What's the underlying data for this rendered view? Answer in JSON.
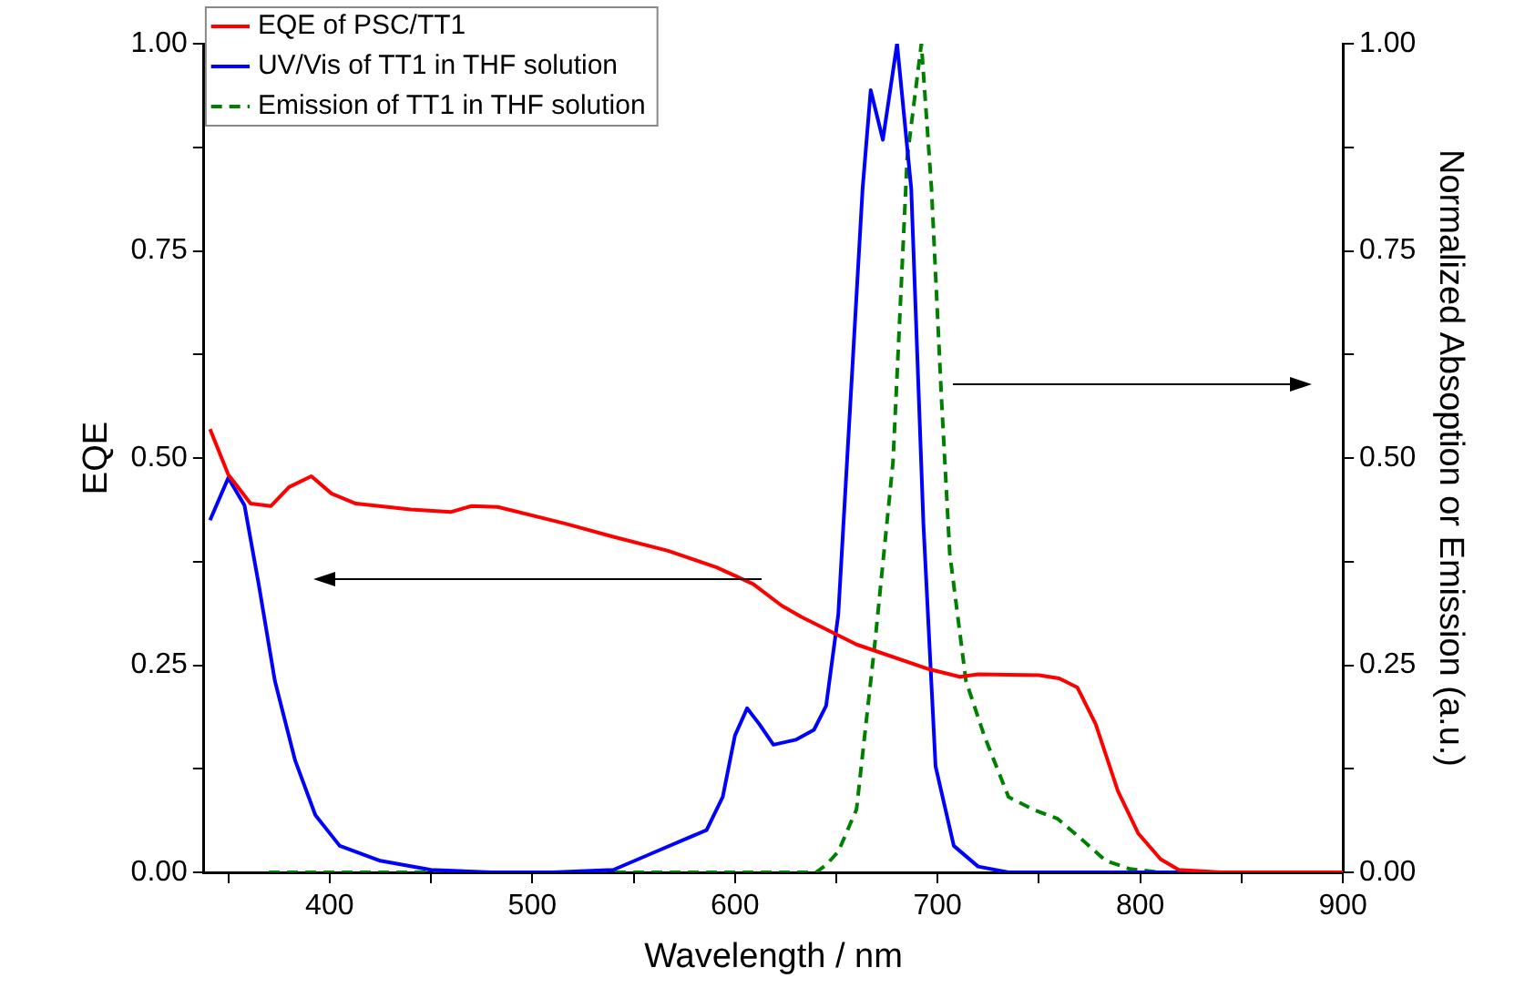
{
  "chart_data": {
    "type": "line",
    "xlabel": "Wavelength / nm",
    "ylabel": "EQE",
    "y2label": "Normalized Absoption or Emission (a.u.)",
    "xlim": [
      338,
      900
    ],
    "xticks": [
      {
        "value": 350,
        "label": null
      },
      400,
      {
        "value": 450,
        "label": null
      },
      500,
      {
        "value": 550,
        "label": null
      },
      600,
      {
        "value": 650,
        "label": null
      },
      700,
      {
        "value": 750,
        "label": null
      },
      800,
      {
        "value": 850,
        "label": null
      },
      900
    ],
    "ylim": [
      0,
      1
    ],
    "yticks": [
      {
        "value": 0,
        "label": "0.00"
      },
      {
        "value": 0.125,
        "label": null
      },
      {
        "value": 0.25,
        "label": "0.25"
      },
      {
        "value": 0.375,
        "label": null
      },
      {
        "value": 0.5,
        "label": "0.50"
      },
      {
        "value": 0.625,
        "label": null
      },
      {
        "value": 0.75,
        "label": "0.75"
      },
      {
        "value": 0.875,
        "label": null
      },
      {
        "value": 1,
        "label": "1.00"
      }
    ],
    "y2lim": [
      0,
      1
    ],
    "y2ticks": [
      {
        "value": 0,
        "label": "0.00"
      },
      {
        "value": 0.125,
        "label": null
      },
      {
        "value": 0.25,
        "label": "0.25"
      },
      {
        "value": 0.375,
        "label": null
      },
      {
        "value": 0.5,
        "label": "0.50"
      },
      {
        "value": 0.625,
        "label": null
      },
      {
        "value": 0.75,
        "label": "0.75"
      },
      {
        "value": 0.875,
        "label": null
      },
      {
        "value": 1,
        "label": "1.00"
      }
    ],
    "grid": false,
    "legend": "top left",
    "marker": "none",
    "series": [
      {
        "name": "EQE of PSC/TT1",
        "color": "#ff0000",
        "line_style": "solid",
        "x": [
          341,
          350,
          361,
          371,
          380,
          391,
          401,
          413,
          440,
          460,
          470,
          483,
          516,
          540,
          567,
          591,
          609,
          623,
          633,
          660,
          696,
          711,
          720,
          750,
          760,
          769,
          778,
          789,
          799,
          810,
          819,
          840,
          870,
          900
        ],
        "values": [
          0.535,
          0.48,
          0.445,
          0.442,
          0.465,
          0.478,
          0.457,
          0.445,
          0.438,
          0.435,
          0.442,
          0.441,
          0.421,
          0.405,
          0.388,
          0.368,
          0.348,
          0.322,
          0.308,
          0.275,
          0.245,
          0.236,
          0.239,
          0.238,
          0.234,
          0.223,
          0.179,
          0.098,
          0.047,
          0.016,
          0.003,
          0,
          0,
          0
        ]
      },
      {
        "name": "UV/Vis of TT1 in THF solution",
        "color": "#0000ff",
        "line_style": "solid",
        "axis": "y2",
        "x": [
          341,
          350,
          358,
          365,
          373,
          383,
          393,
          405,
          425,
          450,
          480,
          510,
          540,
          561,
          586,
          594,
          600,
          606,
          612,
          619,
          630,
          639,
          645,
          651,
          657,
          663,
          667,
          673,
          680,
          687,
          693,
          699,
          708,
          720,
          735,
          800,
          900
        ],
        "values": [
          0.425,
          0.476,
          0.443,
          0.348,
          0.231,
          0.135,
          0.069,
          0.032,
          0.014,
          0.003,
          0,
          0,
          0.003,
          0.025,
          0.051,
          0.091,
          0.165,
          0.198,
          0.179,
          0.154,
          0.16,
          0.172,
          0.201,
          0.311,
          0.568,
          0.825,
          0.944,
          0.884,
          1.0,
          0.825,
          0.421,
          0.128,
          0.032,
          0.007,
          0,
          0,
          0
        ]
      },
      {
        "name": "Emission of TT1 in THF solution",
        "color": "#008000",
        "line_style": "dashed",
        "axis": "y2",
        "x": [
          370,
          450,
          550,
          640,
          645,
          651,
          660,
          669,
          678,
          685,
          692,
          697,
          702,
          706,
          714,
          723,
          735,
          747,
          759,
          771,
          783,
          795,
          810,
          850,
          900
        ],
        "values": [
          0,
          0,
          0,
          0,
          0.009,
          0.025,
          0.076,
          0.275,
          0.495,
          0.862,
          1.0,
          0.825,
          0.568,
          0.385,
          0.231,
          0.165,
          0.091,
          0.076,
          0.065,
          0.04,
          0.014,
          0.004,
          0,
          0,
          0
        ]
      }
    ]
  }
}
